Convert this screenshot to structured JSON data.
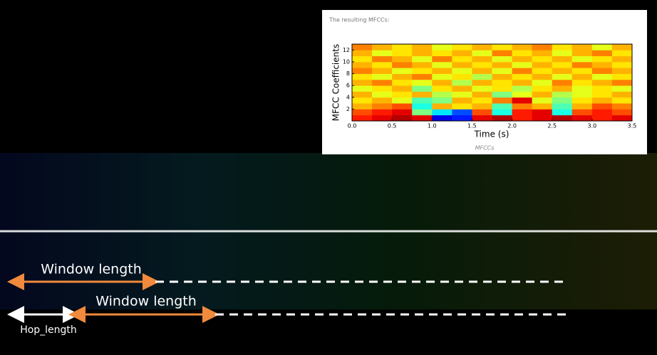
{
  "panel": {
    "heading": "The resulting MFCCs:",
    "caption": "MFCCs"
  },
  "annotations": {
    "window_1": "Window length",
    "window_2": "Window length",
    "hop": "Hop_length"
  },
  "chart_data": {
    "type": "heatmap",
    "xlabel": "Time (s)",
    "ylabel": "MFCC Coefficients",
    "colormap": "jet",
    "zlim": [
      0,
      1
    ],
    "xlim": [
      0,
      3.5
    ],
    "xticks": [
      {
        "value": 0,
        "label": "0.0"
      },
      0.5,
      {
        "value": 1,
        "label": "1.0"
      },
      1.5,
      {
        "value": 2,
        "label": "2.0"
      },
      2.5,
      {
        "value": 3,
        "label": "3.0"
      },
      3.5
    ],
    "ylim": [
      0,
      13
    ],
    "yticks": [
      2,
      4,
      6,
      8,
      10,
      12
    ],
    "values": [
      [
        0.85,
        0.9,
        0.95,
        0.9,
        0.1,
        0.15,
        0.9,
        0.95,
        0.85,
        0.9,
        0.95,
        0.9,
        0.85,
        0.9
      ],
      [
        0.8,
        0.85,
        0.9,
        0.5,
        0.35,
        0.2,
        0.8,
        0.4,
        0.85,
        0.9,
        0.4,
        0.8,
        0.85,
        0.8
      ],
      [
        0.7,
        0.75,
        0.8,
        0.4,
        0.7,
        0.65,
        0.7,
        0.45,
        0.75,
        0.7,
        0.45,
        0.7,
        0.8,
        0.75
      ],
      [
        0.65,
        0.7,
        0.6,
        0.45,
        0.5,
        0.7,
        0.65,
        0.75,
        0.9,
        0.6,
        0.5,
        0.65,
        0.7,
        0.65
      ],
      [
        0.7,
        0.6,
        0.65,
        0.7,
        0.55,
        0.6,
        0.7,
        0.5,
        0.6,
        0.7,
        0.55,
        0.6,
        0.65,
        0.7
      ],
      [
        0.6,
        0.65,
        0.7,
        0.5,
        0.65,
        0.7,
        0.6,
        0.65,
        0.55,
        0.65,
        0.7,
        0.6,
        0.65,
        0.6
      ],
      [
        0.7,
        0.75,
        0.65,
        0.6,
        0.7,
        0.55,
        0.7,
        0.65,
        0.7,
        0.6,
        0.75,
        0.65,
        0.7,
        0.75
      ],
      [
        0.65,
        0.6,
        0.7,
        0.75,
        0.6,
        0.65,
        0.55,
        0.7,
        0.65,
        0.7,
        0.6,
        0.7,
        0.6,
        0.65
      ],
      [
        0.75,
        0.7,
        0.6,
        0.65,
        0.7,
        0.6,
        0.7,
        0.6,
        0.75,
        0.65,
        0.7,
        0.65,
        0.75,
        0.7
      ],
      [
        0.7,
        0.65,
        0.75,
        0.7,
        0.6,
        0.7,
        0.65,
        0.7,
        0.6,
        0.7,
        0.65,
        0.75,
        0.7,
        0.65
      ],
      [
        0.65,
        0.75,
        0.7,
        0.6,
        0.75,
        0.65,
        0.7,
        0.6,
        0.7,
        0.65,
        0.7,
        0.6,
        0.65,
        0.7
      ],
      [
        0.7,
        0.6,
        0.65,
        0.7,
        0.65,
        0.7,
        0.6,
        0.75,
        0.65,
        0.7,
        0.6,
        0.7,
        0.75,
        0.65
      ],
      [
        0.75,
        0.7,
        0.65,
        0.7,
        0.6,
        0.65,
        0.7,
        0.65,
        0.7,
        0.75,
        0.65,
        0.7,
        0.6,
        0.7
      ]
    ]
  }
}
